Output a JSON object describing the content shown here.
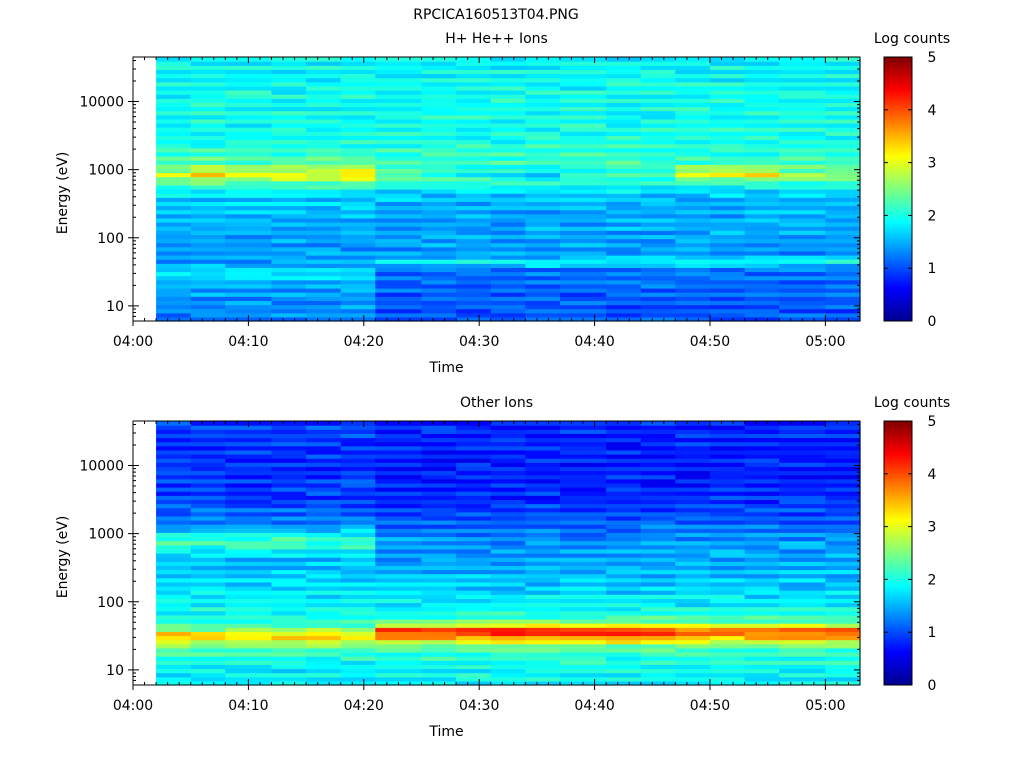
{
  "figure_title": "RPCICA160513T04.PNG",
  "colors": {
    "colormap": [
      "#00008f",
      "#0000ff",
      "#007fff",
      "#00ffff",
      "#7fff7f",
      "#ffff00",
      "#ff7f00",
      "#ff0000",
      "#7f0000"
    ]
  },
  "chart_data": [
    {
      "type": "heatmap",
      "title": "H+ He++ Ions",
      "xlabel": "Time",
      "ylabel": "Energy (eV)",
      "xlim": [
        "04:00",
        "05:03"
      ],
      "yscale": "log",
      "ylim": [
        6,
        45000
      ],
      "x_ticks": [
        "04:00",
        "04:10",
        "04:20",
        "04:30",
        "04:40",
        "04:50",
        "05:00"
      ],
      "y_ticks": [
        {
          "value": 10,
          "label": "10"
        },
        {
          "value": 100,
          "label": "100"
        },
        {
          "value": 1000,
          "label": "1000"
        },
        {
          "value": 10000,
          "label": "10000"
        }
      ],
      "data_start": "04:02",
      "data_end": "05:03",
      "time_bins": [
        "04:02",
        "04:05",
        "04:08",
        "04:12",
        "04:15",
        "04:18",
        "04:21",
        "04:25",
        "04:28",
        "04:31",
        "04:34",
        "04:37",
        "04:41",
        "04:44",
        "04:47",
        "04:50",
        "04:53",
        "04:56",
        "05:00"
      ],
      "energy_profiles": {
        "default": [
          {
            "eV": 6,
            "v": 1.3
          },
          {
            "eV": 12,
            "v": 1.4
          },
          {
            "eV": 25,
            "v": 1.6
          },
          {
            "eV": 30,
            "v": 1.9
          },
          {
            "eV": 40,
            "v": 1.5
          },
          {
            "eV": 60,
            "v": 1.4
          },
          {
            "eV": 100,
            "v": 1.5
          },
          {
            "eV": 200,
            "v": 1.6
          },
          {
            "eV": 400,
            "v": 1.7
          },
          {
            "eV": 600,
            "v": 2.2
          },
          {
            "eV": 850,
            "v": 3.0
          },
          {
            "eV": 1300,
            "v": 2.3
          },
          {
            "eV": 3000,
            "v": 2.0
          },
          {
            "eV": 10000,
            "v": 2.0
          },
          {
            "eV": 45000,
            "v": 1.9
          }
        ],
        "quiet": [
          {
            "eV": 6,
            "v": 1.1
          },
          {
            "eV": 12,
            "v": 1.1
          },
          {
            "eV": 25,
            "v": 1.2
          },
          {
            "eV": 35,
            "v": 1.3
          },
          {
            "eV": 45,
            "v": 2.0
          },
          {
            "eV": 55,
            "v": 1.4
          },
          {
            "eV": 100,
            "v": 1.5
          },
          {
            "eV": 200,
            "v": 1.5
          },
          {
            "eV": 400,
            "v": 1.6
          },
          {
            "eV": 600,
            "v": 2.0
          },
          {
            "eV": 850,
            "v": 2.6
          },
          {
            "eV": 1300,
            "v": 2.2
          },
          {
            "eV": 3000,
            "v": 2.0
          },
          {
            "eV": 10000,
            "v": 2.0
          },
          {
            "eV": 45000,
            "v": 1.9
          }
        ]
      },
      "bin_profiles": [
        "default",
        "default",
        "default",
        "default",
        "default",
        "default",
        "quiet",
        "quiet",
        "quiet",
        "quiet",
        "quiet",
        "quiet",
        "quiet",
        "quiet",
        "quiet",
        "quiet",
        "quiet",
        "quiet",
        "quiet"
      ],
      "peak_log_counts": [
        2.9,
        3.4,
        2.9,
        3.2,
        3.1,
        3.4,
        2.7,
        2.5,
        2.4,
        2.2,
        2.1,
        2.5,
        2.6,
        2.5,
        3.5,
        3.5,
        3.7,
        3.0,
        3.0
      ],
      "colorbar": {
        "label": "Log counts",
        "min": 0,
        "max": 5,
        "ticks": [
          0,
          1,
          2,
          3,
          4,
          5
        ]
      }
    },
    {
      "type": "heatmap",
      "title": "Other Ions",
      "xlabel": "Time",
      "ylabel": "Energy (eV)",
      "xlim": [
        "04:00",
        "05:03"
      ],
      "yscale": "log",
      "ylim": [
        6,
        45000
      ],
      "x_ticks": [
        "04:00",
        "04:10",
        "04:20",
        "04:30",
        "04:40",
        "04:50",
        "05:00"
      ],
      "y_ticks": [
        {
          "value": 10,
          "label": "10"
        },
        {
          "value": 100,
          "label": "100"
        },
        {
          "value": 1000,
          "label": "1000"
        },
        {
          "value": 10000,
          "label": "10000"
        }
      ],
      "data_start": "04:02",
      "data_end": "05:03",
      "time_bins": [
        "04:02",
        "04:05",
        "04:08",
        "04:12",
        "04:15",
        "04:18",
        "04:21",
        "04:25",
        "04:28",
        "04:31",
        "04:34",
        "04:37",
        "04:41",
        "04:44",
        "04:47",
        "04:50",
        "04:53",
        "04:56",
        "05:00"
      ],
      "energy_profiles": {
        "default": [
          {
            "eV": 6,
            "v": 1.8
          },
          {
            "eV": 12,
            "v": 1.9
          },
          {
            "eV": 22,
            "v": 2.4
          },
          {
            "eV": 32,
            "v": 3.4
          },
          {
            "eV": 42,
            "v": 2.3
          },
          {
            "eV": 70,
            "v": 2.0
          },
          {
            "eV": 150,
            "v": 1.8
          },
          {
            "eV": 400,
            "v": 1.6
          },
          {
            "eV": 800,
            "v": 2.3
          },
          {
            "eV": 1300,
            "v": 1.4
          },
          {
            "eV": 3000,
            "v": 1.0
          },
          {
            "eV": 10000,
            "v": 0.9
          },
          {
            "eV": 45000,
            "v": 1.0
          }
        ],
        "active": [
          {
            "eV": 6,
            "v": 1.9
          },
          {
            "eV": 12,
            "v": 2.0
          },
          {
            "eV": 22,
            "v": 2.3
          },
          {
            "eV": 30,
            "v": 3.2
          },
          {
            "eV": 38,
            "v": 3.7
          },
          {
            "eV": 48,
            "v": 2.5
          },
          {
            "eV": 70,
            "v": 2.0
          },
          {
            "eV": 150,
            "v": 1.7
          },
          {
            "eV": 400,
            "v": 1.5
          },
          {
            "eV": 800,
            "v": 1.4
          },
          {
            "eV": 1300,
            "v": 1.2
          },
          {
            "eV": 3000,
            "v": 0.9
          },
          {
            "eV": 10000,
            "v": 0.8
          },
          {
            "eV": 45000,
            "v": 0.9
          }
        ]
      },
      "bin_profiles": [
        "default",
        "default",
        "default",
        "default",
        "default",
        "default",
        "active",
        "active",
        "active",
        "active",
        "active",
        "active",
        "active",
        "active",
        "active",
        "active",
        "active",
        "active",
        "active"
      ],
      "peak_log_counts": [
        3.4,
        3.1,
        3.0,
        3.1,
        3.3,
        3.0,
        3.7,
        3.6,
        3.8,
        3.8,
        3.8,
        3.7,
        3.9,
        3.7,
        3.4,
        3.4,
        3.4,
        3.5,
        3.6
      ],
      "colorbar": {
        "label": "Log counts",
        "min": 0,
        "max": 5,
        "ticks": [
          0,
          1,
          2,
          3,
          4,
          5
        ]
      }
    }
  ]
}
